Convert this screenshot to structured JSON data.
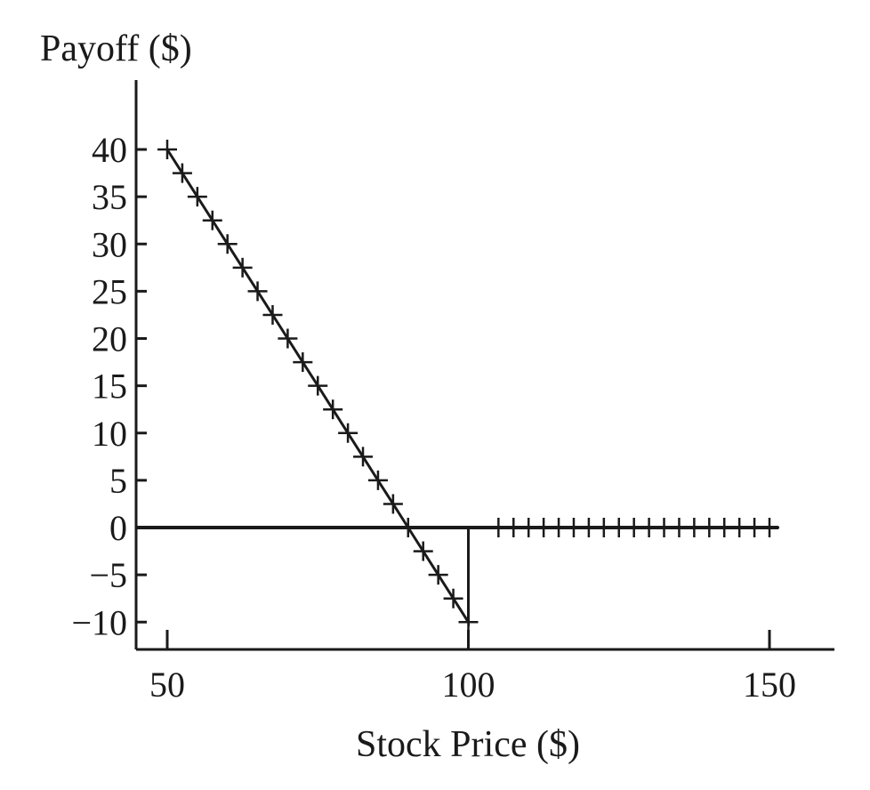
{
  "chart_data": {
    "type": "line",
    "ylabel": "Payoff ($)",
    "xlabel": "Stock Price ($)",
    "x_ticks": [
      50,
      100,
      150
    ],
    "y_ticks": [
      40,
      35,
      30,
      25,
      20,
      15,
      10,
      5,
      0,
      -5,
      -10
    ],
    "x_tick_labels": [
      "50",
      "100",
      "150"
    ],
    "y_tick_labels": [
      "40",
      "35",
      "30",
      "25",
      "20",
      "15",
      "10",
      "5",
      "0",
      "−5",
      "−10"
    ],
    "xlim": [
      45,
      162
    ],
    "ylim": [
      -13,
      47
    ],
    "grid": false,
    "legend": "none",
    "series": [
      {
        "marker": "plus",
        "color": "#1a1a1a",
        "points": [
          [
            50,
            40
          ],
          [
            52.5,
            37.5
          ],
          [
            55,
            35
          ],
          [
            57.5,
            32.5
          ],
          [
            60,
            30
          ],
          [
            62.5,
            27.5
          ],
          [
            65,
            25
          ],
          [
            67.5,
            22.5
          ],
          [
            70,
            20
          ],
          [
            72.5,
            17.5
          ],
          [
            75,
            15
          ],
          [
            77.5,
            12.5
          ],
          [
            80,
            10
          ],
          [
            82.5,
            7.5
          ],
          [
            85,
            5
          ],
          [
            87.5,
            2.5
          ],
          [
            90,
            0
          ],
          [
            92.5,
            -2.5
          ],
          [
            95,
            -5
          ],
          [
            97.5,
            -7.5
          ],
          [
            100,
            -10
          ],
          [
            100,
            0
          ],
          [
            105,
            0
          ],
          [
            107.5,
            0
          ],
          [
            110,
            0
          ],
          [
            112.5,
            0
          ],
          [
            115,
            0
          ],
          [
            117.5,
            0
          ],
          [
            120,
            0
          ],
          [
            122.5,
            0
          ],
          [
            125,
            0
          ],
          [
            127.5,
            0
          ],
          [
            130,
            0
          ],
          [
            132.5,
            0
          ],
          [
            135,
            0
          ],
          [
            137.5,
            0
          ],
          [
            140,
            0
          ],
          [
            142.5,
            0
          ],
          [
            145,
            0
          ],
          [
            147.5,
            0
          ],
          [
            150,
            0
          ]
        ],
        "marker_points": [
          [
            50,
            40
          ],
          [
            52.5,
            37.5
          ],
          [
            55,
            35
          ],
          [
            57.5,
            32.5
          ],
          [
            60,
            30
          ],
          [
            62.5,
            27.5
          ],
          [
            65,
            25
          ],
          [
            67.5,
            22.5
          ],
          [
            70,
            20
          ],
          [
            72.5,
            17.5
          ],
          [
            75,
            15
          ],
          [
            77.5,
            12.5
          ],
          [
            80,
            10
          ],
          [
            82.5,
            7.5
          ],
          [
            85,
            5
          ],
          [
            87.5,
            2.5
          ],
          [
            90,
            0
          ],
          [
            92.5,
            -2.5
          ],
          [
            95,
            -5
          ],
          [
            97.5,
            -7.5
          ],
          [
            100,
            -10
          ],
          [
            105,
            0
          ],
          [
            107.5,
            0
          ],
          [
            110,
            0
          ],
          [
            112.5,
            0
          ],
          [
            115,
            0
          ],
          [
            117.5,
            0
          ],
          [
            120,
            0
          ],
          [
            122.5,
            0
          ],
          [
            125,
            0
          ],
          [
            127.5,
            0
          ],
          [
            130,
            0
          ],
          [
            132.5,
            0
          ],
          [
            135,
            0
          ],
          [
            137.5,
            0
          ],
          [
            140,
            0
          ],
          [
            142.5,
            0
          ],
          [
            145,
            0
          ],
          [
            147.5,
            0
          ],
          [
            150,
            0
          ]
        ]
      }
    ]
  }
}
